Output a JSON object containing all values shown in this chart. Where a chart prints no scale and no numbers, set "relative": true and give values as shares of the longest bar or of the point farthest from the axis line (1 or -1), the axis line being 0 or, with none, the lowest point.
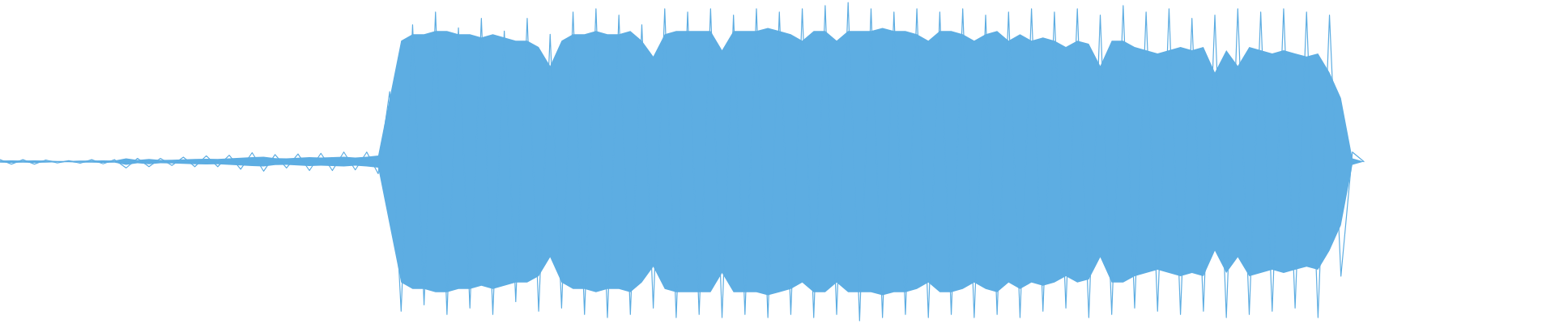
{
  "chart_data": {
    "type": "line",
    "relative": true,
    "categories": [
      null,
      null,
      null,
      null,
      null,
      null,
      null,
      null,
      null,
      null,
      null,
      null,
      null,
      null,
      null,
      null,
      null,
      null,
      null,
      null,
      null,
      null,
      null,
      null,
      null,
      null,
      null,
      null,
      null,
      null,
      null,
      null,
      null,
      null,
      null,
      null,
      null,
      null,
      null,
      null,
      null,
      null,
      null,
      null,
      null,
      null,
      null,
      null,
      null,
      null,
      null,
      null,
      null,
      null,
      null,
      null,
      null,
      null,
      null,
      null,
      null,
      null,
      null,
      null,
      null,
      null,
      null,
      null,
      null,
      null,
      null,
      null,
      null,
      null,
      null,
      null,
      null,
      null,
      null,
      null,
      null,
      null,
      null,
      null,
      null,
      null,
      null,
      null,
      null,
      null,
      null,
      null,
      null,
      null,
      null,
      null,
      null,
      null,
      null,
      null,
      null,
      null,
      null,
      null,
      null,
      null,
      null,
      null,
      null,
      null,
      null,
      null,
      null,
      null,
      null,
      null,
      null,
      null,
      null,
      null
    ],
    "series": [
      {
        "color": "#5dade2",
        "values": [
          0.506,
          0.492,
          0.506,
          0.492,
          0.505,
          0.496,
          0.503,
          0.495,
          0.506,
          0.493,
          0.506,
          0.48,
          0.51,
          0.484,
          0.51,
          0.488,
          0.514,
          0.484,
          0.518,
          0.484,
          0.52,
          0.476,
          0.528,
          0.47,
          0.522,
          0.48,
          0.524,
          0.472,
          0.526,
          0.472,
          0.53,
          0.474,
          0.53,
          0.462,
          0.72,
          0.03,
          0.93,
          0.05,
          0.97,
          0.02,
          0.92,
          0.04,
          0.95,
          0.02,
          0.91,
          0.06,
          0.95,
          0.03,
          0.9,
          0.04,
          0.97,
          0.02,
          0.98,
          0.01,
          0.96,
          0.02,
          0.93,
          0.04,
          0.98,
          0.01,
          0.97,
          0.02,
          0.98,
          0.01,
          0.96,
          0.02,
          0.98,
          0.01,
          0.97,
          0.02,
          0.98,
          0.01,
          0.99,
          0.02,
          1,
          0,
          0.98,
          0.01,
          0.97,
          0.02,
          0.98,
          0.01,
          0.97,
          0.02,
          0.98,
          0.01,
          0.96,
          0.02,
          0.97,
          0.01,
          0.98,
          0.03,
          0.97,
          0.04,
          0.98,
          0.01,
          0.96,
          0.02,
          0.99,
          0.04,
          0.97,
          0.03,
          0.98,
          0.02,
          0.95,
          0.03,
          0.96,
          0.01,
          0.98,
          0.02,
          0.97,
          0.03,
          0.98,
          0.04,
          0.97,
          0.01,
          0.96,
          0.14,
          0.53,
          0.5
        ],
        "upper": [
          0.503,
          0.504,
          0.503,
          0.504,
          0.503,
          0.502,
          0.502,
          0.503,
          0.503,
          0.504,
          0.503,
          0.51,
          0.505,
          0.508,
          0.505,
          0.506,
          0.507,
          0.508,
          0.509,
          0.508,
          0.51,
          0.512,
          0.514,
          0.515,
          0.511,
          0.51,
          0.512,
          0.514,
          0.513,
          0.514,
          0.515,
          0.513,
          0.515,
          0.519,
          0.7,
          0.88,
          0.9,
          0.9,
          0.91,
          0.91,
          0.9,
          0.9,
          0.89,
          0.9,
          0.89,
          0.88,
          0.88,
          0.86,
          0.8,
          0.88,
          0.9,
          0.9,
          0.91,
          0.9,
          0.9,
          0.91,
          0.88,
          0.83,
          0.9,
          0.91,
          0.91,
          0.91,
          0.91,
          0.85,
          0.91,
          0.91,
          0.91,
          0.92,
          0.91,
          0.9,
          0.88,
          0.91,
          0.91,
          0.88,
          0.91,
          0.91,
          0.91,
          0.92,
          0.91,
          0.91,
          0.9,
          0.88,
          0.91,
          0.91,
          0.9,
          0.88,
          0.9,
          0.91,
          0.88,
          0.9,
          0.88,
          0.89,
          0.88,
          0.86,
          0.88,
          0.87,
          0.8,
          0.88,
          0.88,
          0.86,
          0.85,
          0.84,
          0.85,
          0.86,
          0.85,
          0.86,
          0.78,
          0.85,
          0.8,
          0.86,
          0.85,
          0.84,
          0.85,
          0.84,
          0.83,
          0.84,
          0.78,
          0.7,
          0.51,
          0.5
        ],
        "lower": [
          0.497,
          0.496,
          0.497,
          0.496,
          0.497,
          0.498,
          0.498,
          0.497,
          0.497,
          0.496,
          0.497,
          0.49,
          0.495,
          0.492,
          0.495,
          0.494,
          0.493,
          0.492,
          0.491,
          0.492,
          0.49,
          0.488,
          0.486,
          0.485,
          0.489,
          0.49,
          0.488,
          0.486,
          0.487,
          0.486,
          0.485,
          0.487,
          0.485,
          0.481,
          0.3,
          0.12,
          0.1,
          0.1,
          0.09,
          0.09,
          0.1,
          0.1,
          0.11,
          0.1,
          0.11,
          0.12,
          0.12,
          0.14,
          0.2,
          0.12,
          0.1,
          0.1,
          0.09,
          0.1,
          0.1,
          0.09,
          0.12,
          0.17,
          0.1,
          0.09,
          0.09,
          0.09,
          0.09,
          0.15,
          0.09,
          0.09,
          0.09,
          0.08,
          0.09,
          0.1,
          0.12,
          0.09,
          0.09,
          0.12,
          0.09,
          0.09,
          0.09,
          0.08,
          0.09,
          0.09,
          0.1,
          0.12,
          0.09,
          0.09,
          0.1,
          0.12,
          0.1,
          0.09,
          0.12,
          0.1,
          0.12,
          0.11,
          0.12,
          0.14,
          0.12,
          0.13,
          0.2,
          0.12,
          0.12,
          0.14,
          0.15,
          0.16,
          0.15,
          0.14,
          0.15,
          0.14,
          0.22,
          0.15,
          0.2,
          0.14,
          0.15,
          0.16,
          0.15,
          0.16,
          0.17,
          0.16,
          0.22,
          0.3,
          0.49,
          0.5
        ]
      }
    ]
  }
}
